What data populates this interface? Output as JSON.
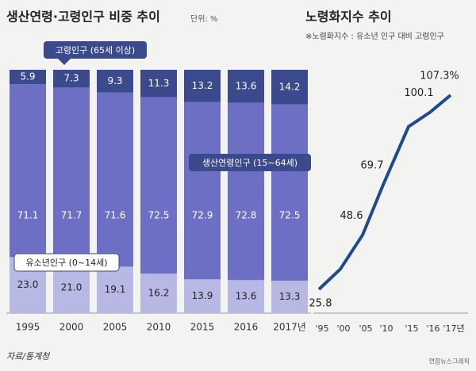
{
  "chart_data": [
    {
      "type": "stacked_bar",
      "title": "생산연령·고령인구 비중 추이",
      "unit": "단위: %",
      "categories": [
        "1995",
        "2000",
        "2005",
        "2010",
        "2015",
        "2016",
        "2017년"
      ],
      "series": [
        {
          "name": "유소년인구 (0~14세)",
          "color": "#b8b8e4",
          "values": [
            23.0,
            21.0,
            19.1,
            16.2,
            13.9,
            13.6,
            13.3
          ],
          "value_labels": [
            "23.0",
            "21.0",
            "19.1",
            "16.2",
            "13.9",
            "13.6",
            "13.3"
          ]
        },
        {
          "name": "생산연령인구 (15~64세)",
          "color": "#6c6fc4",
          "values": [
            71.1,
            71.7,
            71.6,
            72.5,
            72.9,
            72.8,
            72.5
          ],
          "value_labels": [
            "71.1",
            "71.7",
            "71.6",
            "72.5",
            "72.9",
            "72.8",
            "72.5"
          ]
        },
        {
          "name": "고령인구 (65세 이상)",
          "color": "#3a4a8c",
          "values": [
            5.9,
            7.3,
            9.3,
            11.3,
            13.2,
            13.6,
            14.2
          ],
          "value_labels": [
            "5.9",
            "7.3",
            "9.3",
            "11.3",
            "13.2",
            "13.6",
            "14.2"
          ]
        }
      ],
      "source": "자료/통계청"
    },
    {
      "type": "line",
      "title": "노령화지수 추이",
      "subtitle": "※노령화지수 : 유소년 인구 대비 고령인구",
      "categories": [
        "'95",
        "'00",
        "'05",
        "'10",
        "'15",
        "'16",
        "'17년"
      ],
      "values": [
        25.8,
        34.3,
        48.6,
        69.7,
        94.1,
        100.1,
        107.3
      ],
      "value_labels": [
        "25.8",
        null,
        "48.6",
        "69.7",
        null,
        "100.1",
        "107.3%"
      ],
      "color": "#1f4a8e",
      "credit": "연합뉴스그래픽"
    }
  ]
}
